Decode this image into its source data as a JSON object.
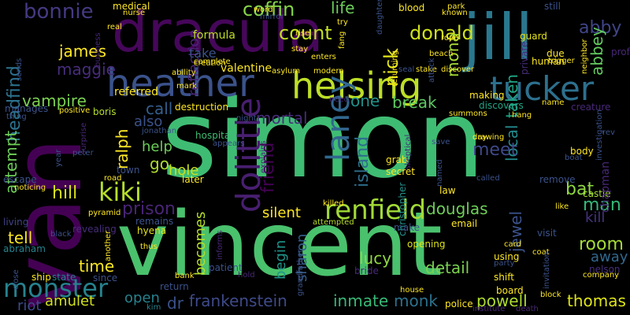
{
  "background": "#000000",
  "palette": [
    "#440154",
    "#482878",
    "#3e4a89",
    "#31688e",
    "#26828e",
    "#1f9e89",
    "#35b779",
    "#6ece58",
    "#b5de2b",
    "#fde725"
  ],
  "words": [
    {
      "text": "simon",
      "color": "#3fbc73",
      "vertical": false
    },
    {
      "text": "vincent",
      "color": "#4ac16d",
      "vertical": false
    },
    {
      "text": "van",
      "color": "#440154",
      "vertical": true
    },
    {
      "text": "dracula",
      "color": "#46075a",
      "vertical": false
    },
    {
      "text": "jill",
      "color": "#2a788e",
      "vertical": false
    },
    {
      "text": "heather",
      "color": "#3b528b",
      "vertical": false
    },
    {
      "text": "helsing",
      "color": "#bddf26",
      "vertical": false
    },
    {
      "text": "tucker",
      "color": "#2d708e",
      "vertical": false
    },
    {
      "text": "dolittle",
      "color": "#481f70",
      "vertical": true
    },
    {
      "text": "renfield",
      "color": "#a2da37",
      "vertical": false
    },
    {
      "text": "laney",
      "color": "#31678e",
      "vertical": true
    },
    {
      "text": "monster",
      "color": "#26828e",
      "vertical": false
    },
    {
      "text": "kiki",
      "color": "#b5de2b",
      "vertical": false
    },
    {
      "text": "reflection",
      "color": "#482576",
      "vertical": true
    },
    {
      "text": "coffin",
      "color": "#86d549",
      "vertical": false
    },
    {
      "text": "bonnie",
      "color": "#443a83",
      "vertical": false
    },
    {
      "text": "count",
      "color": "#c2df23",
      "vertical": false
    },
    {
      "text": "donald",
      "color": "#d0e11c",
      "vertical": false
    },
    {
      "text": "abby",
      "color": "#404588",
      "vertical": false
    },
    {
      "text": "life",
      "color": "#6ccd5a",
      "vertical": false
    },
    {
      "text": "nick",
      "color": "#e2e418",
      "vertical": true
    },
    {
      "text": "mona",
      "color": "#a8db34",
      "vertical": true
    },
    {
      "text": "abbey",
      "color": "#63cb5f",
      "vertical": true
    },
    {
      "text": "james",
      "color": "#fde725",
      "vertical": false
    },
    {
      "text": "maggie",
      "color": "#472d7b",
      "vertical": false
    },
    {
      "text": "headfind",
      "color": "#2c728e",
      "vertical": true
    },
    {
      "text": "vampire",
      "color": "#7ad151",
      "vertical": false
    },
    {
      "text": "one",
      "color": "#21918c",
      "vertical": false
    },
    {
      "text": "break",
      "color": "#5ec962",
      "vertical": false
    },
    {
      "text": "mortal",
      "color": "#472c7a",
      "vertical": false
    },
    {
      "text": "friend",
      "color": "#440154",
      "vertical": true
    },
    {
      "text": "island",
      "color": "#2e6e8e",
      "vertical": true
    },
    {
      "text": "local",
      "color": "#238a8d",
      "vertical": true
    },
    {
      "text": "taken",
      "color": "#21a585",
      "vertical": true
    },
    {
      "text": "meet",
      "color": "#3e4989",
      "vertical": false
    },
    {
      "text": "bat",
      "color": "#8fd744",
      "vertical": false
    },
    {
      "text": "call",
      "color": "#355f8d",
      "vertical": false
    },
    {
      "text": "also",
      "color": "#3b528b",
      "vertical": false
    },
    {
      "text": "help",
      "color": "#6ccd5a",
      "vertical": false
    },
    {
      "text": "go",
      "color": "#addc30",
      "vertical": false
    },
    {
      "text": "hole",
      "color": "#c8e020",
      "vertical": false
    },
    {
      "text": "ralph",
      "color": "#fde725",
      "vertical": true
    },
    {
      "text": "attempt",
      "color": "#6ece58",
      "vertical": true
    },
    {
      "text": "hill",
      "color": "#d8e219",
      "vertical": false
    },
    {
      "text": "prison",
      "color": "#482475",
      "vertical": false
    },
    {
      "text": "silent",
      "color": "#fde725",
      "vertical": false
    },
    {
      "text": "douglas",
      "color": "#6ece58",
      "vertical": false
    },
    {
      "text": "man",
      "color": "#35b779",
      "vertical": false
    },
    {
      "text": "kill",
      "color": "#46337f",
      "vertical": false
    },
    {
      "text": "tell",
      "color": "#fde725",
      "vertical": false
    },
    {
      "text": "becomes",
      "color": "#b5de2b",
      "vertical": true
    },
    {
      "text": "sharon",
      "color": "#355f8d",
      "vertical": true
    },
    {
      "text": "lucy",
      "color": "#8fd744",
      "vertical": false
    },
    {
      "text": "room",
      "color": "#a5db36",
      "vertical": false
    },
    {
      "text": "away",
      "color": "#31688e",
      "vertical": false
    },
    {
      "text": "time",
      "color": "#fde725",
      "vertical": false
    },
    {
      "text": "begin",
      "color": "#1f968b",
      "vertical": true
    },
    {
      "text": "jewel",
      "color": "#3b528b",
      "vertical": true
    },
    {
      "text": "detail",
      "color": "#7ad151",
      "vertical": false
    },
    {
      "text": "open",
      "color": "#26828e",
      "vertical": false
    },
    {
      "text": "frankenstein",
      "color": "#3e4a89",
      "vertical": false
    },
    {
      "text": "inmate",
      "color": "#38b977",
      "vertical": false
    },
    {
      "text": "monk",
      "color": "#2c728e",
      "vertical": false
    },
    {
      "text": "powell",
      "color": "#addc30",
      "vertical": false
    },
    {
      "text": "thomas",
      "color": "#dde318",
      "vertical": false
    },
    {
      "text": "amulet",
      "color": "#d2e21b",
      "vertical": false
    },
    {
      "text": "riot",
      "color": "#3e4a89",
      "vertical": false
    },
    {
      "text": "dr",
      "color": "#3b528b",
      "vertical": false
    },
    {
      "text": "take",
      "color": "#3b528b",
      "vertical": false
    },
    {
      "text": "valentine",
      "color": "#fde725",
      "vertical": false
    },
    {
      "text": "formula",
      "color": "#c0df25",
      "vertical": false
    },
    {
      "text": "referred",
      "color": "#fde725",
      "vertical": false
    },
    {
      "text": "destruction",
      "color": "#fde725",
      "vertical": false
    },
    {
      "text": "hospital",
      "color": "#3fbc73",
      "vertical": false
    },
    {
      "text": "boris",
      "color": "#b5de2b",
      "vertical": false
    },
    {
      "text": "escape",
      "color": "#3b528b",
      "vertical": false
    },
    {
      "text": "living",
      "color": "#414287",
      "vertical": false
    },
    {
      "text": "abraham",
      "color": "#26828e",
      "vertical": false
    },
    {
      "text": "revealing",
      "color": "#472d7b",
      "vertical": false
    },
    {
      "text": "remains",
      "color": "#3b528b",
      "vertical": false
    },
    {
      "text": "hyena",
      "color": "#e5e419",
      "vertical": false
    },
    {
      "text": "manages",
      "color": "#3b528b",
      "vertical": false
    },
    {
      "text": "creature",
      "color": "#482878",
      "vertical": false
    },
    {
      "text": "castle",
      "color": "#a5db36",
      "vertical": false
    },
    {
      "text": "chapman",
      "color": "#482878",
      "vertical": true
    },
    {
      "text": "nelson",
      "color": "#472d7b",
      "vertical": false
    },
    {
      "text": "visit",
      "color": "#3b528b",
      "vertical": false
    },
    {
      "text": "prof",
      "color": "#482878",
      "vertical": false
    },
    {
      "text": "guard",
      "color": "#e5e419",
      "vertical": false
    },
    {
      "text": "human",
      "color": "#fde725",
      "vertical": false
    },
    {
      "text": "due",
      "color": "#fde725",
      "vertical": false
    },
    {
      "text": "private",
      "color": "#472d7b",
      "vertical": true
    },
    {
      "text": "discovers",
      "color": "#20a486",
      "vertical": false
    },
    {
      "text": "making",
      "color": "#fde725",
      "vertical": false
    },
    {
      "text": "secret",
      "color": "#fde725",
      "vertical": false
    },
    {
      "text": "grab",
      "color": "#fde725",
      "vertical": false
    },
    {
      "text": "christopher",
      "color": "#21918c",
      "vertical": true
    },
    {
      "text": "law",
      "color": "#fde725",
      "vertical": false
    },
    {
      "text": "police",
      "color": "#fde725",
      "vertical": false
    },
    {
      "text": "opening",
      "color": "#dde318",
      "vertical": false
    },
    {
      "text": "bride",
      "color": "#482878",
      "vertical": false
    },
    {
      "text": "shift",
      "color": "#fde725",
      "vertical": false
    },
    {
      "text": "using",
      "color": "#fde725",
      "vertical": false
    },
    {
      "text": "party",
      "color": "#3b528b",
      "vertical": false
    },
    {
      "text": "board",
      "color": "#fde725",
      "vertical": false
    },
    {
      "text": "house",
      "color": "#fde725",
      "vertical": false
    },
    {
      "text": "institute",
      "color": "#482878",
      "vertical": false
    },
    {
      "text": "death",
      "color": "#482878",
      "vertical": false
    },
    {
      "text": "email",
      "color": "#fde725",
      "vertical": false
    },
    {
      "text": "make",
      "color": "#3b528b",
      "vertical": false
    },
    {
      "text": "attempted",
      "color": "#b5de2b",
      "vertical": false
    },
    {
      "text": "killed",
      "color": "#fde725",
      "vertical": false
    },
    {
      "text": "later",
      "color": "#fde725",
      "vertical": false
    },
    {
      "text": "patient",
      "color": "#3b528b",
      "vertical": false
    },
    {
      "text": "return",
      "color": "#3b528b",
      "vertical": false
    },
    {
      "text": "bank",
      "color": "#fde725",
      "vertical": false
    },
    {
      "text": "kim",
      "color": "#26828e",
      "vertical": false
    },
    {
      "text": "since",
      "color": "#3b528b",
      "vertical": false
    },
    {
      "text": "state",
      "color": "#26828e",
      "vertical": false
    },
    {
      "text": "ship",
      "color": "#fde725",
      "vertical": false
    },
    {
      "text": "thus",
      "color": "#fde725",
      "vertical": false
    },
    {
      "text": "informs",
      "color": "#482878",
      "vertical": true
    },
    {
      "text": "hold",
      "color": "#482878",
      "vertical": false
    },
    {
      "text": "another",
      "color": "#fde725",
      "vertical": true
    },
    {
      "text": "black",
      "color": "#3b528b",
      "vertical": false
    },
    {
      "text": "pyramid",
      "color": "#fde725",
      "vertical": false
    },
    {
      "text": "road",
      "color": "#fde725",
      "vertical": false
    },
    {
      "text": "town",
      "color": "#3b528b",
      "vertical": false
    },
    {
      "text": "peter",
      "color": "#3b528b",
      "vertical": false
    },
    {
      "text": "year",
      "color": "#3b528b",
      "vertical": true
    },
    {
      "text": "noticing",
      "color": "#fde725",
      "vertical": false
    },
    {
      "text": "surprise",
      "color": "#482878",
      "vertical": true
    },
    {
      "text": "jonathan",
      "color": "#3b528b",
      "vertical": false
    },
    {
      "text": "appears",
      "color": "#3b528b",
      "vertical": false
    },
    {
      "text": "night",
      "color": "#3b528b",
      "vertical": false
    },
    {
      "text": "explains",
      "color": "#482878",
      "vertical": true
    },
    {
      "text": "drawing",
      "color": "#fde725",
      "vertical": false
    },
    {
      "text": "day",
      "color": "#fde725",
      "vertical": false
    },
    {
      "text": "skeptical",
      "color": "#482878",
      "vertical": true
    },
    {
      "text": "named",
      "color": "#3b528b",
      "vertical": true
    },
    {
      "text": "called",
      "color": "#3b528b",
      "vertical": false
    },
    {
      "text": "remove",
      "color": "#3b528b",
      "vertical": false
    },
    {
      "text": "body",
      "color": "#fde725",
      "vertical": false
    },
    {
      "text": "boat",
      "color": "#3b528b",
      "vertical": false
    },
    {
      "text": "investigation",
      "color": "#3b528b",
      "vertical": true
    },
    {
      "text": "summons",
      "color": "#fde725",
      "vertical": false
    },
    {
      "text": "hang",
      "color": "#fde725",
      "vertical": false
    },
    {
      "text": "name",
      "color": "#fde725",
      "vertical": false
    },
    {
      "text": "need",
      "color": "#482878",
      "vertical": false
    },
    {
      "text": "medical",
      "color": "#fde725",
      "vertical": false
    },
    {
      "text": "nurse",
      "color": "#fde725",
      "vertical": false
    },
    {
      "text": "word",
      "color": "#fde725",
      "vertical": false
    },
    {
      "text": "blood",
      "color": "#fde725",
      "vertical": false
    },
    {
      "text": "park",
      "color": "#fde725",
      "vertical": false
    },
    {
      "text": "still",
      "color": "#3b528b",
      "vertical": false
    },
    {
      "text": "known",
      "color": "#fde725",
      "vertical": false
    },
    {
      "text": "rope",
      "color": "#fde725",
      "vertical": false
    },
    {
      "text": "trigger",
      "color": "#fde725",
      "vertical": false
    },
    {
      "text": "neighbor",
      "color": "#fde725",
      "vertical": true
    },
    {
      "text": "mirror",
      "color": "#3b528b",
      "vertical": false
    },
    {
      "text": "daughter",
      "color": "#3b528b",
      "vertical": true
    },
    {
      "text": "rise",
      "color": "#fde725",
      "vertical": false
    },
    {
      "text": "try",
      "color": "#fde725",
      "vertical": false
    },
    {
      "text": "beach",
      "color": "#fde725",
      "vertical": false
    },
    {
      "text": "stay",
      "color": "#fde725",
      "vertical": false
    },
    {
      "text": "enters",
      "color": "#fde725",
      "vertical": false
    },
    {
      "text": "asylum",
      "color": "#fde725",
      "vertical": false
    },
    {
      "text": "modern",
      "color": "#fde725",
      "vertical": false
    },
    {
      "text": "returning",
      "color": "#fde725",
      "vertical": true
    },
    {
      "text": "fang",
      "color": "#fde725",
      "vertical": true
    },
    {
      "text": "seal",
      "color": "#3b528b",
      "vertical": false
    },
    {
      "text": "stake",
      "color": "#fde725",
      "vertical": false
    },
    {
      "text": "discover",
      "color": "#fde725",
      "vertical": false
    },
    {
      "text": "attack",
      "color": "#3b528b",
      "vertical": true
    },
    {
      "text": "mark",
      "color": "#fde725",
      "vertical": false
    },
    {
      "text": "ability",
      "color": "#fde725",
      "vertical": false
    },
    {
      "text": "creation",
      "color": "#fde725",
      "vertical": false
    },
    {
      "text": "complete",
      "color": "#fde725",
      "vertical": false
    },
    {
      "text": "business",
      "color": "#482878",
      "vertical": true
    },
    {
      "text": "real",
      "color": "#fde725",
      "vertical": false
    },
    {
      "text": "sends",
      "color": "#3b528b",
      "vertical": true
    },
    {
      "text": "thing",
      "color": "#3b528b",
      "vertical": false
    },
    {
      "text": "positive",
      "color": "#fde725",
      "vertical": false
    },
    {
      "text": "close",
      "color": "#3b528b",
      "vertical": true
    },
    {
      "text": "coat",
      "color": "#fde725",
      "vertical": false
    },
    {
      "text": "like",
      "color": "#fde725",
      "vertical": false
    },
    {
      "text": "card",
      "color": "#fde725",
      "vertical": false
    },
    {
      "text": "block",
      "color": "#fde725",
      "vertical": false
    },
    {
      "text": "company",
      "color": "#fde725",
      "vertical": false
    },
    {
      "text": "invitation",
      "color": "#3b528b",
      "vertical": true
    },
    {
      "text": "grandfather",
      "color": "#3b528b",
      "vertical": true
    },
    {
      "text": "save",
      "color": "#3b528b",
      "vertical": false
    },
    {
      "text": "rev",
      "color": "#3b528b",
      "vertical": false
    }
  ]
}
